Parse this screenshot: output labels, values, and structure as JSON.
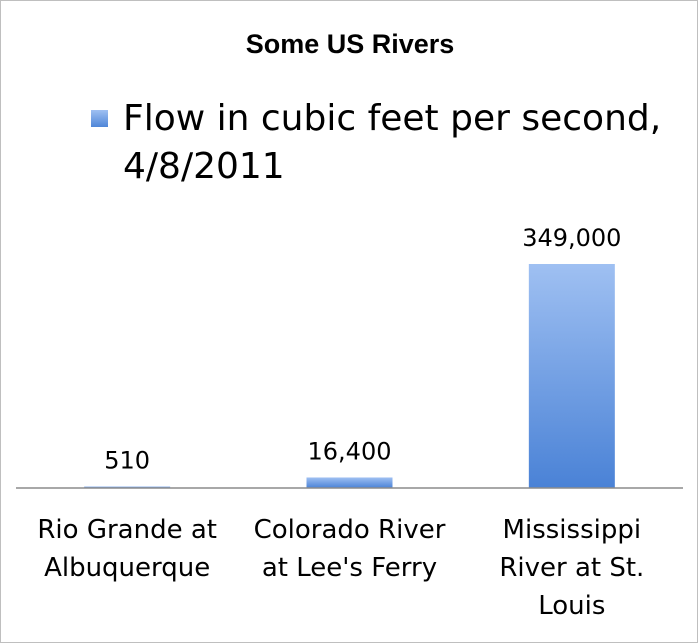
{
  "chart_data": {
    "type": "bar",
    "title": "Some US Rivers",
    "categories": [
      "Rio Grande at\nAlbuquerque",
      "Colorado River\nat Lee's Ferry",
      "Mississippi\nRiver at St.\nLouis"
    ],
    "series": [
      {
        "name": "Flow in cubic feet per second, 4/8/2011",
        "values": [
          510,
          16400,
          349000
        ],
        "data_labels": [
          "510",
          "16,400",
          "349,000"
        ]
      }
    ],
    "xlabel": "",
    "ylabel": "",
    "ylim": [
      0,
      349000
    ],
    "grid": false,
    "legend_position": "top",
    "colors": {
      "bar_top": "#9fc0f2",
      "bar_bottom": "#4a82d6",
      "axis": "#8c8c8c"
    }
  }
}
